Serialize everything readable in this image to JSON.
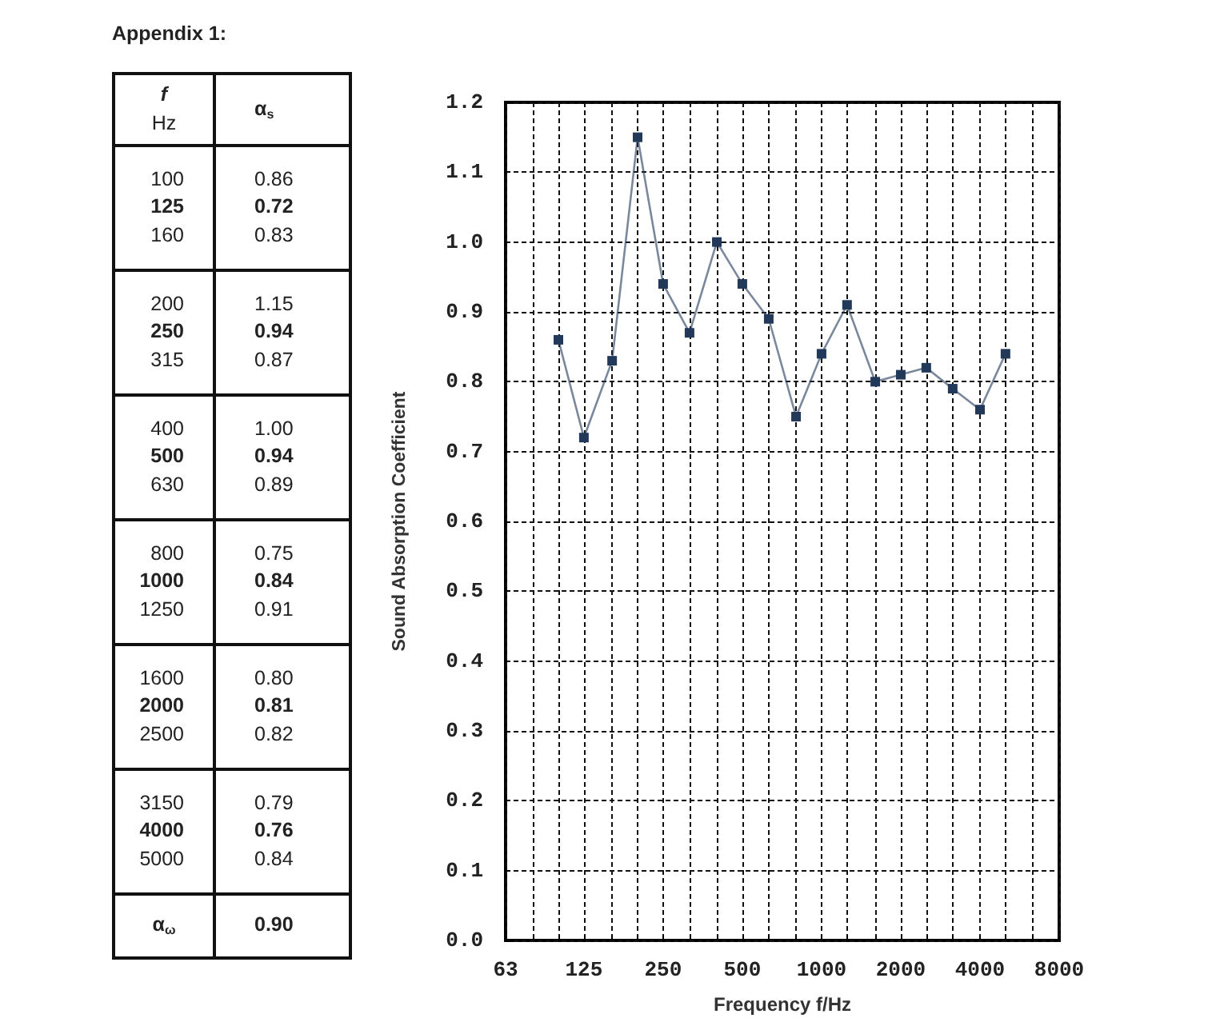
{
  "chart_data": [
    {
      "type": "other",
      "title": "Appendix 1:",
      "annotations": [
        "f",
        "Hz",
        "α$_{s}$",
        "100",
        "0.86",
        "125",
        "0.72",
        "160",
        "0.83",
        "200",
        "1.15",
        "250",
        "0.94",
        "315",
        "0.87",
        "400",
        "1.00",
        "500",
        "0.94",
        "630",
        "0.89",
        "800",
        "0.75",
        "1000",
        "0.84",
        "1250",
        "0.91",
        "1600",
        "0.80",
        "2000",
        "0.81",
        "2500",
        "0.82",
        "3150",
        "0.79",
        "4000",
        "0.76",
        "5000",
        "0.84",
        "α$_{ω}$",
        "0.90"
      ]
    },
    {
      "type": "line",
      "xlabel": "Frequency f/Hz",
      "ylabel": "Sound Absorption Coefficient",
      "x": [
        100,
        125,
        160,
        200,
        250,
        315,
        400,
        500,
        630,
        800,
        1000,
        1250,
        1600,
        2000,
        2500,
        3150,
        4000,
        5000
      ],
      "values": [
        0.86,
        0.72,
        0.83,
        1.15,
        0.94,
        0.87,
        1.0,
        0.94,
        0.89,
        0.75,
        0.84,
        0.91,
        0.8,
        0.81,
        0.82,
        0.79,
        0.76,
        0.84
      ],
      "color": "#23395a",
      "marker": "square",
      "line_style": "solid",
      "log": "x",
      "grid": true,
      "xlim": [
        63,
        8000
      ],
      "xticks": [
        63,
        {
          "value": 80,
          "label": null
        },
        {
          "value": 100,
          "label": null
        },
        125,
        {
          "value": 160,
          "label": null
        },
        {
          "value": 200,
          "label": null
        },
        250,
        {
          "value": 315,
          "label": null
        },
        {
          "value": 400,
          "label": null
        },
        500,
        {
          "value": 630,
          "label": null
        },
        {
          "value": 800,
          "label": null
        },
        1000,
        {
          "value": 1250,
          "label": null
        },
        {
          "value": 1600,
          "label": null
        },
        2000,
        {
          "value": 2500,
          "label": null
        },
        {
          "value": 3150,
          "label": null
        },
        4000,
        {
          "value": 5000,
          "label": null
        },
        {
          "value": 6300,
          "label": null
        },
        8000
      ],
      "ylim": [
        0,
        1.2
      ],
      "yticks": [
        {
          "value": 0,
          "label": "0.0"
        },
        0.1,
        0.2,
        0.3,
        0.4,
        0.5,
        0.6,
        0.7,
        0.8,
        0.9,
        {
          "value": 1,
          "label": "1.0"
        },
        1.1,
        1.2
      ]
    }
  ]
}
